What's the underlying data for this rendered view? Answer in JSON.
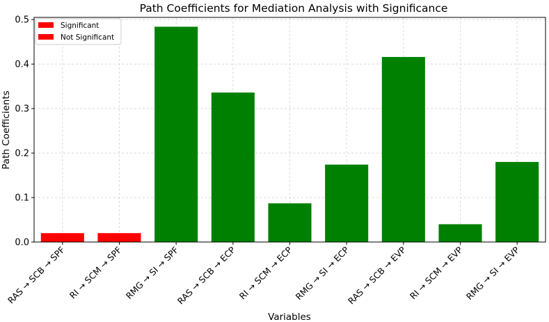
{
  "chart_data": {
    "type": "bar",
    "title": "Path Coefficients for Mediation Analysis with Significance",
    "xlabel": "Variables",
    "ylabel": "Path Coefficients",
    "categories": [
      "RAS → SCB → SPF",
      "RI → SCM → SPF",
      "RMG → SI → SPF",
      "RAS → SCB → ECP",
      "RI → SCM → ECP",
      "RMG → SI → ECP",
      "RAS → SCB → EVP",
      "RI → SCM → EVP",
      "RMG → SI → EVP"
    ],
    "values": [
      0.02,
      0.02,
      0.484,
      0.336,
      0.087,
      0.174,
      0.416,
      0.04,
      0.18
    ],
    "colors": [
      "#ff0000",
      "#ff0000",
      "#008000",
      "#008000",
      "#008000",
      "#008000",
      "#008000",
      "#008000",
      "#008000"
    ],
    "ylim": [
      0,
      0.505
    ],
    "yticks": [
      0.0,
      0.1,
      0.2,
      0.3,
      0.4,
      0.5
    ],
    "ytick_labels": [
      "0.0",
      "0.1",
      "0.2",
      "0.3",
      "0.4",
      "0.5"
    ],
    "grid": true,
    "legend": {
      "placement": "top-left",
      "entries": [
        {
          "label": "Significant",
          "color": "#ff0000"
        },
        {
          "label": "Not Significant",
          "color": "#ff0000"
        }
      ]
    }
  }
}
